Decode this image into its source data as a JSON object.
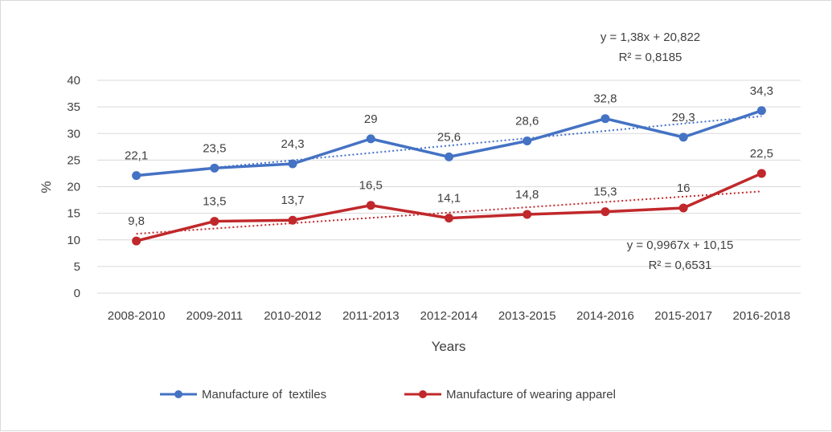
{
  "chart_data": {
    "type": "line",
    "categories": [
      "2008-2010",
      "2009-2011",
      "2010-2012",
      "2011-2013",
      "2012-2014",
      "2013-2015",
      "2014-2016",
      "2015-2017",
      "2016-2018"
    ],
    "series": [
      {
        "name": "Manufacture of  textiles",
        "color": "#4472c4",
        "values": [
          22.1,
          23.5,
          24.3,
          29,
          25.6,
          28.6,
          32.8,
          29.3,
          34.3
        ],
        "labels": [
          "22,1",
          "23,5",
          "24,3",
          "29",
          "25,6",
          "28,6",
          "32,8",
          "29,3",
          "34,3"
        ],
        "trendline": {
          "slope": 1.38,
          "intercept": 20.822,
          "equation": "y = 1,38x + 20,822",
          "r2": "R² = 0,8185"
        }
      },
      {
        "name": "Manufacture of wearing apparel",
        "color": "#c0282b",
        "values": [
          9.8,
          13.5,
          13.7,
          16.5,
          14.1,
          14.8,
          15.3,
          16,
          22.5
        ],
        "labels": [
          "9,8",
          "13,5",
          "13,7",
          "16,5",
          "14,1",
          "14,8",
          "15,3",
          "16",
          "22,5"
        ],
        "trendline": {
          "slope": 0.9967,
          "intercept": 10.15,
          "equation": "y = 0,9967x + 10,15",
          "r2": "R² = 0,6531"
        }
      }
    ],
    "xlabel": "Years",
    "ylabel": "%",
    "ylim": [
      0,
      40
    ],
    "yticks": [
      0,
      5,
      10,
      15,
      20,
      25,
      30,
      35,
      40
    ],
    "grid": true,
    "legend": "bottom"
  }
}
